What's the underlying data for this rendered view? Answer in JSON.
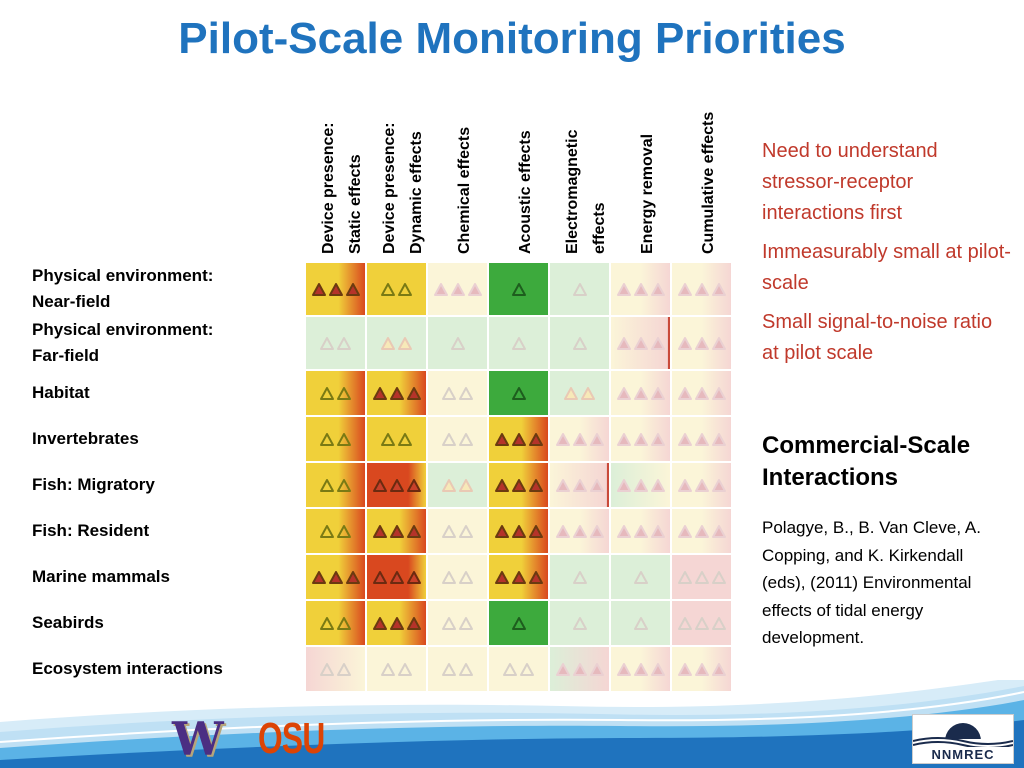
{
  "title": "Pilot-Scale Monitoring Priorities",
  "columns": [
    "Device presence:\nStatic effects",
    "Device presence:\nDynamic effects",
    "Chemical effects",
    "Acoustic effects",
    "Electromagnetic\neffects",
    "Energy removal",
    "Cumulative effects"
  ],
  "rows": [
    "Physical environment:\nNear-field",
    "Physical environment:\nFar-field",
    "Habitat",
    "Invertebrates",
    "Fish: Migratory",
    "Fish: Resident",
    "Marine mammals",
    "Seabirds",
    "Ecosystem interactions"
  ],
  "legend_notes": {
    "green": "Need to understand stressor-receptor interactions first",
    "pink": "Immeasurably small at pilot-scale",
    "red_edge": "Small signal-to-noise ratio at pilot scale"
  },
  "commercial_heading": "Commercial-Scale Interactions",
  "citation": "Polagye, B., B. Van Cleve, A. Copping, and K. Kirkendall (eds), (2011) Environmental effects of tidal energy development.",
  "logos": {
    "uw": "W",
    "osu": "OSU",
    "nnmrec": "NNMREC"
  },
  "colors": {
    "title": "#1F73BE",
    "note_text": "#C0392B",
    "yellow": "#F0D03A",
    "orange_red": "#D9481F",
    "green_strong": "#3DAA3D",
    "green_pale": "#DCEFD8",
    "cream": "#FBF5D8",
    "pink_pale": "#F5D6D4"
  },
  "matrix": [
    [
      {
        "bg": "yr",
        "tri": {
          "n": 3,
          "style": "red"
        }
      },
      {
        "bg": "y",
        "tri": {
          "n": 2,
          "style": "olive"
        }
      },
      {
        "bg": "c",
        "tri": {
          "n": 3,
          "style": "pinkfill"
        }
      },
      {
        "bg": "g",
        "tri": {
          "n": 1,
          "style": "darkgreen"
        }
      },
      {
        "bg": "gp",
        "tri": {
          "n": 1,
          "style": "paleoutline"
        }
      },
      {
        "bg": "cp",
        "tri": {
          "n": 3,
          "style": "pinkfill"
        }
      },
      {
        "bg": "cp",
        "tri": {
          "n": 3,
          "style": "pinkfill"
        }
      }
    ],
    [
      {
        "bg": "gp",
        "tri": {
          "n": 2,
          "style": "paleoutline"
        }
      },
      {
        "bg": "gp",
        "tri": {
          "n": 2,
          "style": "paleyellow"
        }
      },
      {
        "bg": "gp",
        "tri": {
          "n": 1,
          "style": "paleoutline"
        }
      },
      {
        "bg": "gp",
        "tri": {
          "n": 1,
          "style": "paleoutline"
        }
      },
      {
        "bg": "gp",
        "tri": {
          "n": 1,
          "style": "paleoutline"
        }
      },
      {
        "bg": "cpr",
        "tri": {
          "n": 3,
          "style": "pinkfill"
        }
      },
      {
        "bg": "cp",
        "tri": {
          "n": 3,
          "style": "pinkfill"
        }
      }
    ],
    [
      {
        "bg": "yr",
        "tri": {
          "n": 2,
          "style": "olive"
        }
      },
      {
        "bg": "yr",
        "tri": {
          "n": 3,
          "style": "red"
        }
      },
      {
        "bg": "c",
        "tri": {
          "n": 2,
          "style": "paleoutline"
        }
      },
      {
        "bg": "g",
        "tri": {
          "n": 1,
          "style": "darkgreen"
        }
      },
      {
        "bg": "gp",
        "tri": {
          "n": 2,
          "style": "paleyellow"
        }
      },
      {
        "bg": "cp",
        "tri": {
          "n": 3,
          "style": "pinkfill"
        }
      },
      {
        "bg": "cp",
        "tri": {
          "n": 3,
          "style": "pinkfill"
        }
      }
    ],
    [
      {
        "bg": "yr",
        "tri": {
          "n": 2,
          "style": "olive"
        }
      },
      {
        "bg": "y",
        "tri": {
          "n": 2,
          "style": "olive"
        }
      },
      {
        "bg": "c",
        "tri": {
          "n": 2,
          "style": "paleoutline"
        }
      },
      {
        "bg": "yr",
        "tri": {
          "n": 3,
          "style": "red"
        }
      },
      {
        "bg": "cp",
        "tri": {
          "n": 3,
          "style": "pinkfill"
        }
      },
      {
        "bg": "cp",
        "tri": {
          "n": 3,
          "style": "pinkfill"
        }
      },
      {
        "bg": "cp",
        "tri": {
          "n": 3,
          "style": "pinkfill"
        }
      }
    ],
    [
      {
        "bg": "yr",
        "tri": {
          "n": 2,
          "style": "olive"
        }
      },
      {
        "bg": "r",
        "tri": {
          "n": 3,
          "style": "redoutline"
        }
      },
      {
        "bg": "gp",
        "tri": {
          "n": 2,
          "style": "paleyellow"
        }
      },
      {
        "bg": "yr",
        "tri": {
          "n": 3,
          "style": "red"
        }
      },
      {
        "bg": "cpr",
        "tri": {
          "n": 3,
          "style": "pinkfill"
        }
      },
      {
        "bg": "gpp",
        "tri": {
          "n": 3,
          "style": "pinkfill"
        }
      },
      {
        "bg": "cp",
        "tri": {
          "n": 3,
          "style": "pinkfill"
        }
      }
    ],
    [
      {
        "bg": "yr",
        "tri": {
          "n": 2,
          "style": "olive"
        }
      },
      {
        "bg": "yr",
        "tri": {
          "n": 3,
          "style": "red"
        }
      },
      {
        "bg": "c",
        "tri": {
          "n": 2,
          "style": "paleoutline"
        }
      },
      {
        "bg": "yr",
        "tri": {
          "n": 3,
          "style": "red"
        }
      },
      {
        "bg": "cp",
        "tri": {
          "n": 3,
          "style": "pinkfill"
        }
      },
      {
        "bg": "cp",
        "tri": {
          "n": 3,
          "style": "pinkfill"
        }
      },
      {
        "bg": "cp",
        "tri": {
          "n": 3,
          "style": "pinkfill"
        }
      }
    ],
    [
      {
        "bg": "yr",
        "tri": {
          "n": 3,
          "style": "red"
        }
      },
      {
        "bg": "r",
        "tri": {
          "n": 3,
          "style": "redoutline"
        }
      },
      {
        "bg": "c",
        "tri": {
          "n": 2,
          "style": "paleoutline"
        }
      },
      {
        "bg": "yr",
        "tri": {
          "n": 3,
          "style": "red"
        }
      },
      {
        "bg": "gp",
        "tri": {
          "n": 1,
          "style": "paleoutline"
        }
      },
      {
        "bg": "gp",
        "tri": {
          "n": 1,
          "style": "paleoutline"
        }
      },
      {
        "bg": "pk",
        "tri": {
          "n": 3,
          "style": "paleoutline"
        }
      }
    ],
    [
      {
        "bg": "yr",
        "tri": {
          "n": 2,
          "style": "olive"
        }
      },
      {
        "bg": "yr",
        "tri": {
          "n": 3,
          "style": "red"
        }
      },
      {
        "bg": "c",
        "tri": {
          "n": 2,
          "style": "paleoutline"
        }
      },
      {
        "bg": "g",
        "tri": {
          "n": 1,
          "style": "darkgreen"
        }
      },
      {
        "bg": "gp",
        "tri": {
          "n": 1,
          "style": "paleoutline"
        }
      },
      {
        "bg": "gp",
        "tri": {
          "n": 1,
          "style": "paleoutline"
        }
      },
      {
        "bg": "pk",
        "tri": {
          "n": 3,
          "style": "paleoutline"
        }
      }
    ],
    [
      {
        "bg": "cpl",
        "tri": {
          "n": 2,
          "style": "paleoutline"
        }
      },
      {
        "bg": "c",
        "tri": {
          "n": 2,
          "style": "paleoutline"
        }
      },
      {
        "bg": "c",
        "tri": {
          "n": 2,
          "style": "paleoutline"
        }
      },
      {
        "bg": "c",
        "tri": {
          "n": 2,
          "style": "paleoutline"
        }
      },
      {
        "bg": "cpg",
        "tri": {
          "n": 3,
          "style": "pinkfill"
        }
      },
      {
        "bg": "cp",
        "tri": {
          "n": 3,
          "style": "pinkfill"
        }
      },
      {
        "bg": "cp",
        "tri": {
          "n": 3,
          "style": "pinkfill"
        }
      }
    ]
  ]
}
